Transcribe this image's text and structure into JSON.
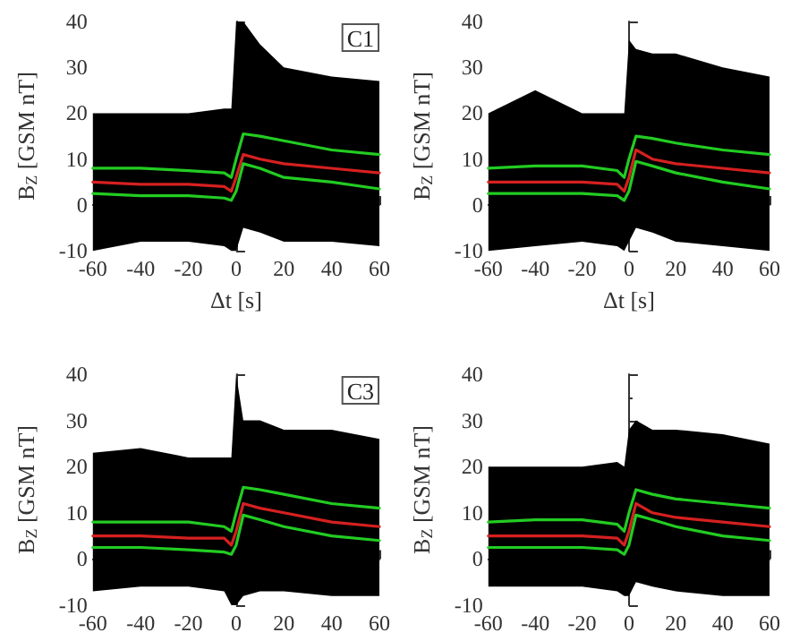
{
  "chart_data": [
    {
      "type": "line",
      "xlabel": "Δt [s]",
      "ylabel": "B$_{Z}$ [GSM nT]",
      "annotations": [
        "C1"
      ],
      "xlim": [
        -60,
        60
      ],
      "xticks": [
        -60,
        -40,
        -20,
        0,
        20,
        40,
        60
      ],
      "ylim": [
        -10,
        40
      ],
      "yticks": [
        -10,
        0,
        10,
        20,
        30,
        40
      ],
      "x": [
        -60,
        -40,
        -20,
        -5,
        -2,
        0,
        3,
        10,
        20,
        40,
        60
      ],
      "series": [
        {
          "color": "#d62020",
          "values": [
            5,
            4.5,
            4.5,
            4,
            3,
            6,
            11,
            10,
            9,
            8,
            7
          ],
          "lower": [
            -10,
            -8,
            -8,
            -9,
            -10,
            -10,
            -5,
            -6,
            -8,
            -8,
            -9
          ],
          "upper": [
            20,
            20,
            20,
            21,
            21,
            40,
            40,
            35,
            30,
            28,
            27
          ]
        },
        {
          "color": "#22cc22",
          "values": [
            8,
            8,
            7.5,
            7,
            6,
            10,
            15.5,
            15,
            14,
            12,
            11
          ]
        },
        {
          "color": "#22cc22",
          "values": [
            2.5,
            2,
            2,
            1.5,
            1,
            3,
            9,
            8,
            6,
            5,
            3.5
          ]
        }
      ]
    },
    {
      "type": "line",
      "xlabel": "Δt [s]",
      "ylabel": "B$_{Z}$ [GSM nT]",
      "xlim": [
        -60,
        60
      ],
      "xticks": [
        -60,
        -40,
        -20,
        0,
        20,
        40,
        60
      ],
      "ylim": [
        -10,
        40
      ],
      "yticks": [
        -10,
        0,
        10,
        20,
        30,
        40
      ],
      "x": [
        -60,
        -40,
        -20,
        -5,
        -2,
        0,
        3,
        10,
        20,
        40,
        60
      ],
      "series": [
        {
          "color": "#d62020",
          "values": [
            5,
            5,
            5,
            4.5,
            3,
            6,
            12,
            10,
            9,
            8,
            7
          ],
          "lower": [
            -10,
            -9,
            -8,
            -9,
            -10,
            -8,
            -5,
            -6,
            -8,
            -9,
            -10
          ],
          "upper": [
            20,
            25,
            20,
            20,
            20,
            36,
            34,
            33,
            33,
            30,
            28
          ]
        },
        {
          "color": "#22cc22",
          "values": [
            8,
            8.5,
            8.5,
            7.5,
            6,
            10,
            15,
            14.5,
            13.5,
            12,
            11
          ]
        },
        {
          "color": "#22cc22",
          "values": [
            2.5,
            2.5,
            2.5,
            2,
            1,
            3,
            9.5,
            8.5,
            7,
            5,
            3.5
          ]
        }
      ]
    },
    {
      "type": "line",
      "ylabel": "B$_{Z}$ [GSM nT]",
      "annotations": [
        "C3"
      ],
      "xlim": [
        -60,
        60
      ],
      "xticks": [
        -60,
        -40,
        -20,
        0,
        20,
        40,
        60
      ],
      "ylim": [
        -10,
        40
      ],
      "yticks": [
        -10,
        0,
        10,
        20,
        30,
        40
      ],
      "x": [
        -60,
        -40,
        -20,
        -5,
        -2,
        0,
        3,
        10,
        20,
        40,
        60
      ],
      "series": [
        {
          "color": "#d62020",
          "values": [
            5,
            5,
            4.5,
            4.5,
            3,
            6,
            12,
            11,
            10,
            8,
            7
          ],
          "lower": [
            -7,
            -6,
            -6,
            -7,
            -10,
            -10,
            -8,
            -7,
            -7,
            -8,
            -8
          ],
          "upper": [
            23,
            24,
            22,
            22,
            22,
            40,
            30,
            30,
            28,
            28,
            26
          ]
        },
        {
          "color": "#22cc22",
          "values": [
            8,
            8,
            8,
            7,
            6,
            10,
            15.5,
            15,
            14,
            12,
            11
          ]
        },
        {
          "color": "#22cc22",
          "values": [
            2.5,
            2.5,
            2,
            1.5,
            1,
            3,
            9.5,
            8.5,
            7,
            5,
            4
          ]
        }
      ]
    },
    {
      "type": "line",
      "ylabel": "B$_{Z}$ [GSM nT]",
      "xlim": [
        -60,
        60
      ],
      "xticks": [
        -60,
        -40,
        -20,
        0,
        20,
        40,
        60
      ],
      "ylim": [
        -10,
        40
      ],
      "yticks": [
        -10,
        0,
        10,
        20,
        30,
        40
      ],
      "x": [
        -60,
        -40,
        -20,
        -5,
        -2,
        0,
        3,
        10,
        20,
        40,
        60
      ],
      "series": [
        {
          "color": "#d62020",
          "values": [
            5,
            5,
            5,
            4.5,
            3,
            6,
            12,
            10,
            9,
            8,
            7
          ],
          "lower": [
            -6,
            -6,
            -6,
            -7,
            -8,
            -8,
            -5,
            -6,
            -7,
            -8,
            -8
          ],
          "upper": [
            20,
            20,
            20,
            21,
            20,
            28,
            30,
            28,
            28,
            27,
            25
          ]
        },
        {
          "color": "#22cc22",
          "values": [
            8,
            8.5,
            8.5,
            7.5,
            6,
            10,
            15,
            14,
            13,
            12,
            11
          ]
        },
        {
          "color": "#22cc22",
          "values": [
            2.5,
            2.5,
            2.5,
            2,
            1,
            3,
            9.5,
            8.5,
            7,
            5,
            4
          ]
        }
      ]
    }
  ]
}
